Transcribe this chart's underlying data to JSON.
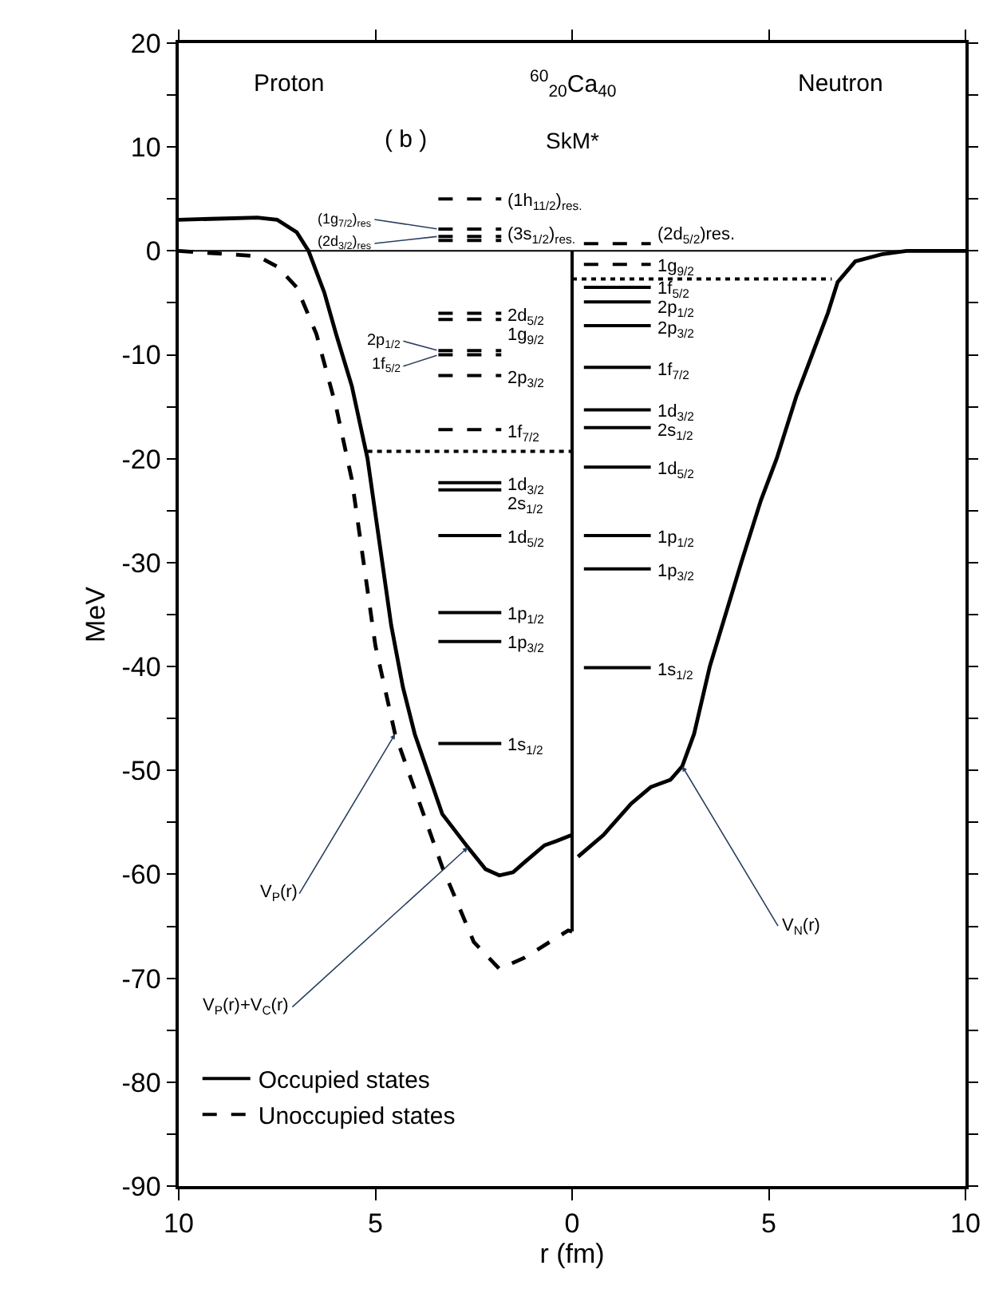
{
  "chart_data": {
    "type": "line",
    "title": "$^{60}$$_{20}$Ca$_{40}$",
    "subtitle": "SkM*",
    "xlabel": "r (fm)",
    "ylabel": "MeV",
    "xlim": [
      -10,
      10
    ],
    "ylim": [
      -90,
      20
    ],
    "xticks": [
      {
        "value": -10,
        "label": "10"
      },
      {
        "value": -5,
        "label": "5"
      },
      0,
      5,
      10
    ],
    "yticks": [
      20,
      {
        "value": 15,
        "label": null
      },
      10,
      {
        "value": 5,
        "label": null
      },
      0,
      {
        "value": -5,
        "label": null
      },
      -10,
      {
        "value": -15,
        "label": null
      },
      -20,
      {
        "value": -25,
        "label": null
      },
      -30,
      {
        "value": -35,
        "label": null
      },
      -40,
      {
        "value": -45,
        "label": null
      },
      -50,
      {
        "value": -55,
        "label": null
      },
      -60,
      {
        "value": -65,
        "label": null
      },
      -70,
      {
        "value": -75,
        "label": null
      },
      -80,
      {
        "value": -85,
        "label": null
      },
      -90
    ],
    "grid": false,
    "legend": "bottom left",
    "marker": "none",
    "ref_lines": [
      {
        "axis": "y",
        "value": 0,
        "color": "#000000",
        "line_style": "solid"
      }
    ],
    "series": [
      {
        "name": "Occupied states",
        "color": "#000000",
        "line_style": "solid",
        "x": [
          -3.4,
          -1.8
        ],
        "values": [
          -22.3,
          -22.3
        ]
      },
      {
        "color": "#000000",
        "line_style": "solid",
        "x": [
          -3.4,
          -1.8
        ],
        "values": [
          -23.0,
          -23.0
        ]
      },
      {
        "color": "#000000",
        "line_style": "solid",
        "x": [
          -3.4,
          -1.8
        ],
        "values": [
          -27.4,
          -27.4
        ]
      },
      {
        "color": "#000000",
        "line_style": "solid",
        "x": [
          -3.4,
          -1.8
        ],
        "values": [
          -34.8,
          -34.8
        ]
      },
      {
        "color": "#000000",
        "line_style": "solid",
        "x": [
          -3.4,
          -1.8
        ],
        "values": [
          -37.6,
          -37.6
        ]
      },
      {
        "color": "#000000",
        "line_style": "solid",
        "x": [
          -3.4,
          -1.8
        ],
        "values": [
          -47.4,
          -47.4
        ]
      },
      {
        "color": "#000000",
        "line_style": "solid",
        "x": [
          0.3,
          2.0
        ],
        "values": [
          -3.5,
          -3.5
        ]
      },
      {
        "color": "#000000",
        "line_style": "solid",
        "x": [
          0.3,
          2.0
        ],
        "values": [
          -4.9,
          -4.9
        ]
      },
      {
        "color": "#000000",
        "line_style": "solid",
        "x": [
          0.3,
          2.0
        ],
        "values": [
          -7.2,
          -7.2
        ]
      },
      {
        "color": "#000000",
        "line_style": "solid",
        "x": [
          0.3,
          2.0
        ],
        "values": [
          -11.2,
          -11.2
        ]
      },
      {
        "color": "#000000",
        "line_style": "solid",
        "x": [
          0.3,
          2.0
        ],
        "values": [
          -15.3,
          -15.3
        ]
      },
      {
        "color": "#000000",
        "line_style": "solid",
        "x": [
          0.3,
          2.0
        ],
        "values": [
          -17.0,
          -17.0
        ]
      },
      {
        "color": "#000000",
        "line_style": "solid",
        "x": [
          0.3,
          2.0
        ],
        "values": [
          -20.8,
          -20.8
        ]
      },
      {
        "color": "#000000",
        "line_style": "solid",
        "x": [
          0.3,
          2.0
        ],
        "values": [
          -27.4,
          -27.4
        ]
      },
      {
        "color": "#000000",
        "line_style": "solid",
        "x": [
          0.3,
          2.0
        ],
        "values": [
          -30.6,
          -30.6
        ]
      },
      {
        "color": "#000000",
        "line_style": "solid",
        "x": [
          0.3,
          2.0
        ],
        "values": [
          -40.1,
          -40.1
        ]
      },
      {
        "name": "Unoccupied states",
        "color": "#000000",
        "line_style": "dashed",
        "x": [
          -3.4,
          -1.8
        ],
        "values": [
          5.0,
          5.0
        ]
      },
      {
        "color": "#000000",
        "line_style": "dashed",
        "x": [
          -3.4,
          -1.8
        ],
        "values": [
          2.1,
          2.1
        ]
      },
      {
        "color": "#000000",
        "line_style": "dashed",
        "x": [
          -3.4,
          -1.8
        ],
        "values": [
          1.4,
          1.4
        ]
      },
      {
        "color": "#000000",
        "line_style": "dashed",
        "x": [
          -3.4,
          -1.8
        ],
        "values": [
          1.0,
          1.0
        ]
      },
      {
        "color": "#000000",
        "line_style": "dashed",
        "x": [
          -3.4,
          -1.8
        ],
        "values": [
          -6.0,
          -6.0
        ]
      },
      {
        "color": "#000000",
        "line_style": "dashed",
        "x": [
          -3.4,
          -1.8
        ],
        "values": [
          -6.6,
          -6.6
        ]
      },
      {
        "color": "#000000",
        "line_style": "dashed",
        "x": [
          -3.4,
          -1.8
        ],
        "values": [
          -9.6,
          -9.6
        ]
      },
      {
        "color": "#000000",
        "line_style": "dashed",
        "x": [
          -3.4,
          -1.8
        ],
        "values": [
          -10.0,
          -10.0
        ]
      },
      {
        "color": "#000000",
        "line_style": "dashed",
        "x": [
          -3.4,
          -1.8
        ],
        "values": [
          -12.0,
          -12.0
        ]
      },
      {
        "color": "#000000",
        "line_style": "dashed",
        "x": [
          -3.4,
          -1.8
        ],
        "values": [
          -17.2,
          -17.2
        ]
      },
      {
        "color": "#000000",
        "line_style": "dashed",
        "x": [
          0.3,
          2.0
        ],
        "values": [
          0.7,
          0.7
        ]
      },
      {
        "color": "#000000",
        "line_style": "dashed",
        "x": [
          0.3,
          2.0
        ],
        "values": [
          -1.3,
          -1.3
        ]
      },
      {
        "color": "#000000",
        "line_style": "solid",
        "x": [
          -10,
          -9,
          -8,
          -7.5,
          -7,
          -6.7,
          -6.3,
          -6.0,
          -5.6,
          -5.2,
          -4.9,
          -4.6,
          -4.3,
          -4.0,
          -3.3,
          -2.65,
          -2.2,
          -1.85,
          -1.5,
          -1.2,
          -0.7,
          -0.4,
          0
        ],
        "values": [
          3.0,
          3.1,
          3.2,
          3.0,
          1.8,
          0,
          -4,
          -8,
          -13,
          -20,
          -28,
          -36,
          -42,
          -46.5,
          -54.2,
          -57.4,
          -59.5,
          -60.1,
          -59.8,
          -58.8,
          -57.2,
          -56.8,
          -56.2
        ]
      },
      {
        "color": "#000000",
        "line_style": "dashed",
        "x": [
          -10,
          -8,
          -7.5,
          -7,
          -6.5,
          -6,
          -5.6,
          -5.3,
          -5.0,
          -4.5,
          -3.3,
          -2.5,
          -1.85,
          -1.2,
          -0.1,
          0
        ],
        "values": [
          0,
          -0.5,
          -1.5,
          -3.5,
          -8,
          -15,
          -22,
          -30,
          -38,
          -46.5,
          -59.3,
          -66.5,
          -69.1,
          -68.0,
          -65.4,
          -65.5
        ]
      },
      {
        "color": "#000000",
        "line_style": "solid",
        "x": [
          0.15,
          0.8,
          1.5,
          2.0,
          2.5,
          2.8,
          3.1,
          3.5,
          4.3,
          4.8,
          5.2,
          5.7,
          6.1,
          6.5,
          6.75,
          7.2,
          7.9,
          8.5,
          10
        ],
        "values": [
          -58.3,
          -56.2,
          -53.2,
          -51.6,
          -50.9,
          -49.6,
          -46.5,
          -40,
          -30,
          -24,
          -20,
          -14,
          -10,
          -6,
          -3,
          -1,
          -0.3,
          0,
          0
        ]
      },
      {
        "color": "#000000",
        "line_style": "solid",
        "x": [
          0,
          0
        ],
        "values": [
          0,
          -65.5
        ]
      },
      {
        "color": "#000000",
        "line_style": "dotted",
        "x": [
          -5.2,
          0
        ],
        "values": [
          -19.3,
          -19.3
        ]
      },
      {
        "color": "#000000",
        "line_style": "dotted",
        "x": [
          0,
          6.6
        ],
        "values": [
          -2.7,
          -2.7
        ]
      }
    ],
    "annotations": [
      "Proton",
      "( b )",
      "Neutron",
      {
        "text": "(1h$_{11/2}$)$_{res.}$",
        "x": -1.8,
        "y": 5.0
      },
      {
        "text": "(1g$_{7/2}$)$_{res}$",
        "x": -3.4,
        "y": 2.1
      },
      {
        "text": "(2d$_{3/2}$)$_{res}$",
        "x": -3.4,
        "y": 1.4
      },
      {
        "text": "(3s$_{1/2}$)$_{res.}$",
        "x": -1.8,
        "y": 1.0
      },
      {
        "text": "2d$_{5/2}$",
        "x": -1.8,
        "y": -6.0
      },
      {
        "text": "1g$_{9/2}$",
        "x": -1.8,
        "y": -6.6
      },
      {
        "text": "2p$_{1/2}$",
        "x": -3.4,
        "y": -9.6
      },
      {
        "text": "1f$_{5/2}$",
        "x": -3.4,
        "y": -10.0
      },
      {
        "text": "2p$_{3/2}$",
        "x": -1.8,
        "y": -12.0
      },
      {
        "text": "1f$_{7/2}$",
        "x": -1.8,
        "y": -17.2
      },
      {
        "text": "1d$_{3/2}$",
        "x": -1.8,
        "y": -22.3
      },
      {
        "text": "2s$_{1/2}$",
        "x": -1.8,
        "y": -23.0
      },
      {
        "text": "1d$_{5/2}$",
        "x": -1.8,
        "y": -27.4
      },
      {
        "text": "1p$_{1/2}$",
        "x": -1.8,
        "y": -34.8
      },
      {
        "text": "1p$_{3/2}$",
        "x": -1.8,
        "y": -37.6
      },
      {
        "text": "1s$_{1/2}$",
        "x": -1.8,
        "y": -47.4
      },
      {
        "text": "(2d$_{5/2}$)res.",
        "x": 2.0,
        "y": 0.7
      },
      {
        "text": "1g$_{9/2}$",
        "x": 2.0,
        "y": -1.3
      },
      {
        "text": "1f$_{5/2}$",
        "x": 2.0,
        "y": -3.5
      },
      {
        "text": "2p$_{1/2}$",
        "x": 2.0,
        "y": -4.9
      },
      {
        "text": "2p$_{3/2}$",
        "x": 2.0,
        "y": -7.2
      },
      {
        "text": "1f$_{7/2}$",
        "x": 2.0,
        "y": -11.2
      },
      {
        "text": "1d$_{3/2}$",
        "x": 2.0,
        "y": -15.3
      },
      {
        "text": "2s$_{1/2}$",
        "x": 2.0,
        "y": -17.0
      },
      {
        "text": "1d$_{5/2}$",
        "x": 2.0,
        "y": -20.8
      },
      {
        "text": "1p$_{1/2}$",
        "x": 2.0,
        "y": -27.4
      },
      {
        "text": "1p$_{3/2}$",
        "x": 2.0,
        "y": -30.6
      },
      {
        "text": "1s$_{1/2}$",
        "x": 2.0,
        "y": -40.1
      },
      {
        "text": "V$_{P}$(r)",
        "x": -4.5,
        "y": -46.5
      },
      {
        "text": "V$_{P}$(r)+V$_{C}$(r)",
        "x": -2.65,
        "y": -57.4
      },
      {
        "text": "V$_{N}$(r)",
        "x": 2.8,
        "y": -49.6
      }
    ]
  }
}
